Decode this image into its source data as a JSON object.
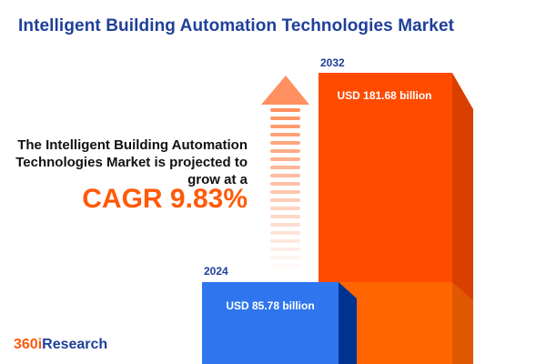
{
  "title": "Intelligent Building Automation Technologies Market",
  "description": "The Intelligent Building Automation Technologies Market is projected to grow at a",
  "cagr": "CAGR 9.83%",
  "logo": {
    "part1": "360i",
    "part2": "Research"
  },
  "colors": {
    "bar_2024": "#2f76ee",
    "bar_2032": "#ff4b00",
    "arrow": "#ff9060",
    "title": "#1f3f9a"
  },
  "chart_data": {
    "type": "bar",
    "categories": [
      "2024",
      "2032"
    ],
    "values": [
      85.78,
      181.68
    ],
    "unit": "USD billion",
    "labels": [
      "USD 85.78 billion",
      "USD 181.68 billion"
    ]
  }
}
